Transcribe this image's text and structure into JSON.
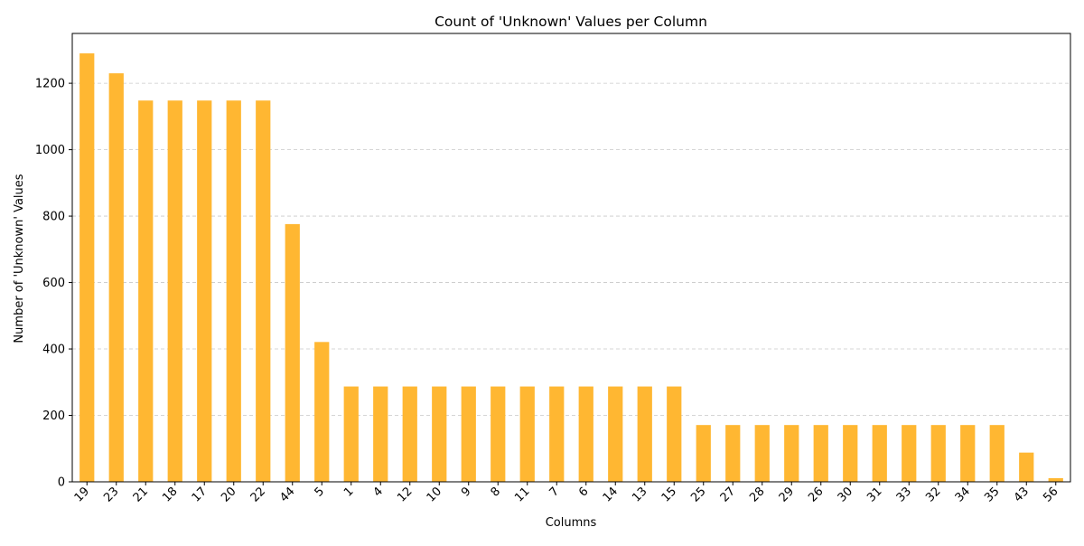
{
  "chart_data": {
    "type": "bar",
    "title": "Count of 'Unknown' Values per Column",
    "xlabel": "Columns",
    "ylabel": "Number of 'Unknown' Values",
    "categories": [
      "19",
      "23",
      "21",
      "18",
      "17",
      "20",
      "22",
      "44",
      "5",
      "1",
      "4",
      "12",
      "10",
      "9",
      "8",
      "11",
      "7",
      "6",
      "14",
      "13",
      "15",
      "25",
      "27",
      "28",
      "29",
      "26",
      "30",
      "31",
      "33",
      "32",
      "34",
      "35",
      "43",
      "56"
    ],
    "values": [
      1290,
      1230,
      1148,
      1148,
      1148,
      1148,
      1148,
      776,
      421,
      287,
      287,
      287,
      287,
      287,
      287,
      287,
      287,
      287,
      287,
      287,
      287,
      171,
      171,
      171,
      171,
      171,
      171,
      171,
      171,
      171,
      171,
      171,
      88,
      11
    ],
    "ylim": [
      0,
      1350
    ],
    "yticks": [
      "0",
      "200",
      "400",
      "600",
      "800",
      "1000",
      "1200"
    ],
    "grid": "y-dashed",
    "bar_color": "#ffb732",
    "grid_color": "#c8c8c8"
  }
}
